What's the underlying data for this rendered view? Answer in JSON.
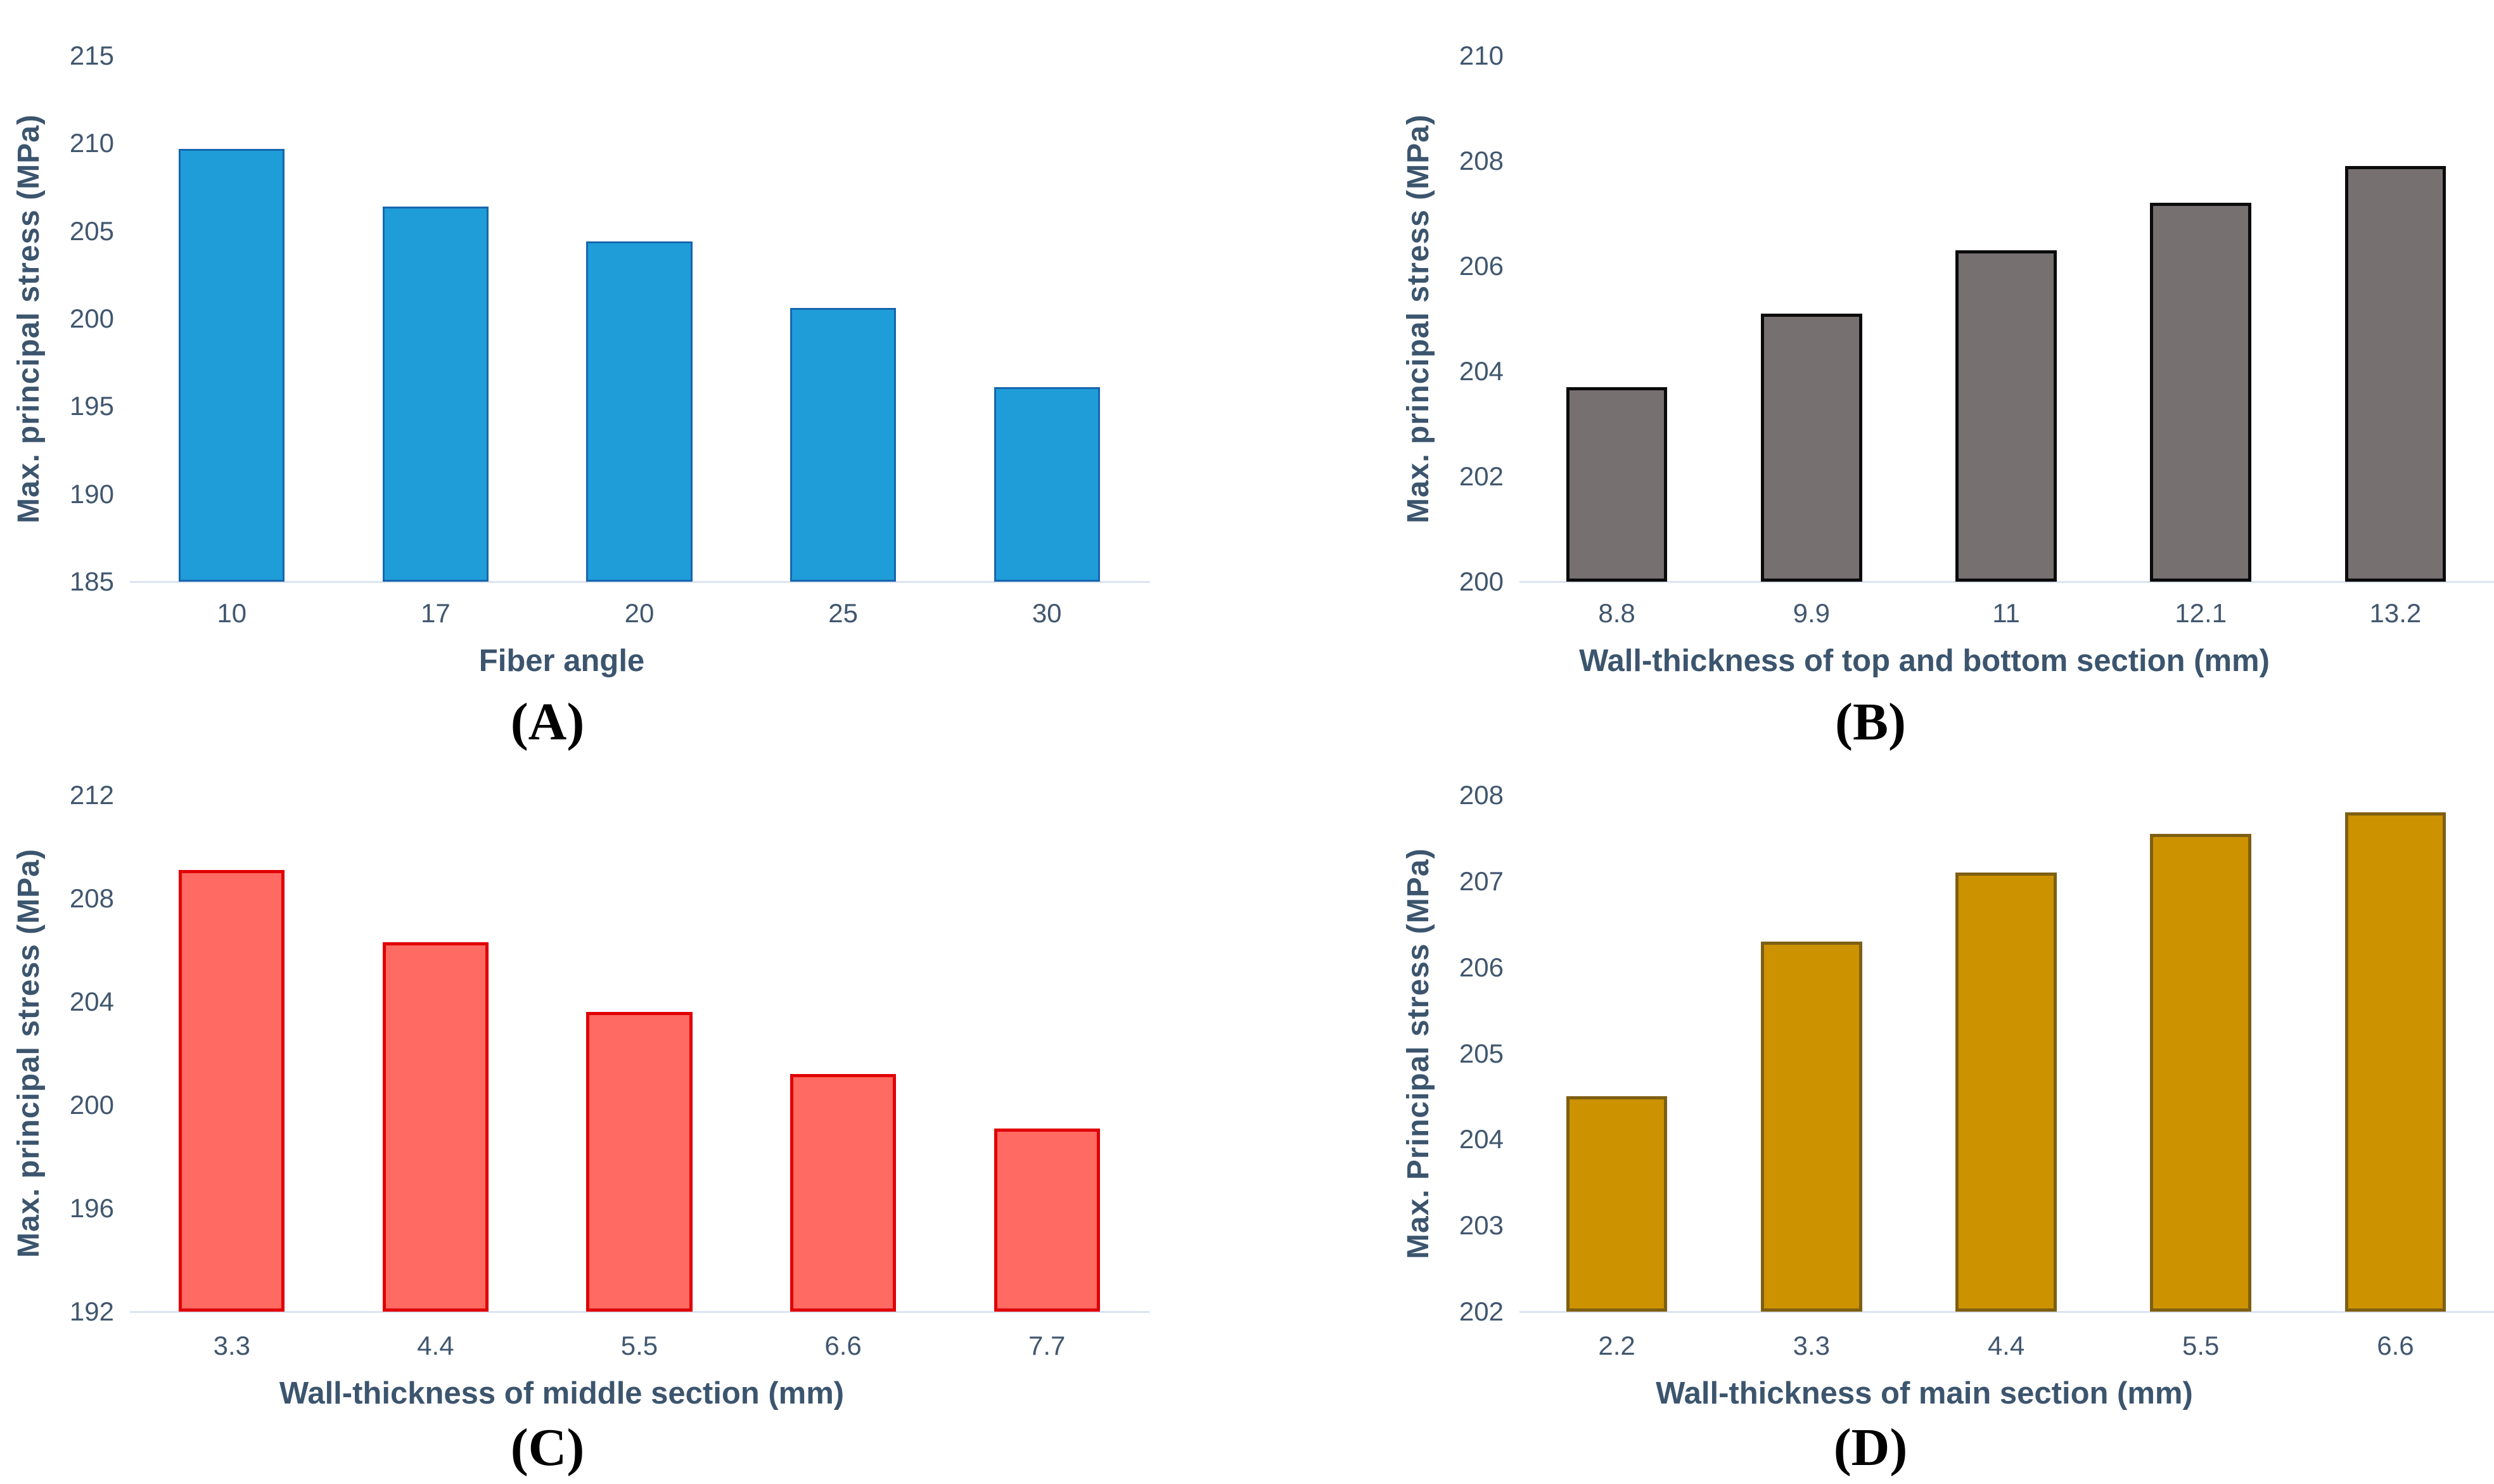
{
  "figure_name": "four-panel bar chart figure, max principal stress parametric study",
  "colors": {
    "tick_label": "#41576F",
    "axis_title": "#3C556E",
    "panel_letter": "#000000",
    "baseline": "#DCE4F0",
    "background": "#FFFFFF"
  },
  "chart_data": [
    {
      "type": "bar",
      "panel_label": "(A)",
      "title": "",
      "xlabel": "Fiber angle",
      "ylabel": "Max. principal stress (MPa)",
      "categories": [
        "10",
        "17",
        "20",
        "25",
        "30"
      ],
      "values": [
        209.7,
        206.4,
        204.4,
        200.6,
        196.1
      ],
      "ylim": [
        185,
        215
      ],
      "yticks": [
        185,
        190,
        195,
        200,
        205,
        210,
        215
      ],
      "grid": false,
      "legend": "none",
      "bar_fill": "#1F9DD9",
      "bar_border": "#1766AE",
      "bar_border_px": 3
    },
    {
      "type": "bar",
      "panel_label": "(B)",
      "title": "",
      "xlabel": "Wall-thickness of top and bottom section (mm)",
      "ylabel": "Max. principal stress (MPa)",
      "categories": [
        "8.8",
        "9.9",
        "11",
        "12.1",
        "13.2"
      ],
      "values": [
        203.7,
        205.1,
        206.3,
        207.2,
        207.9
      ],
      "ylim": [
        200,
        210
      ],
      "yticks": [
        200,
        202,
        204,
        206,
        208,
        210
      ],
      "grid": false,
      "legend": "none",
      "bar_fill": "#767071",
      "bar_border": "#0B0B0B",
      "bar_border_px": 5
    },
    {
      "type": "bar",
      "panel_label": "(C)",
      "title": "",
      "xlabel": "Wall-thickness of middle section (mm)",
      "ylabel": "Max. principal stress (MPa)",
      "categories": [
        "3.3",
        "4.4",
        "5.5",
        "6.6",
        "7.7"
      ],
      "values": [
        209.1,
        206.3,
        203.6,
        201.2,
        199.1
      ],
      "ylim": [
        192,
        212
      ],
      "yticks": [
        192,
        196,
        200,
        204,
        208,
        212
      ],
      "grid": false,
      "legend": "none",
      "bar_fill": "#FF6A62",
      "bar_border": "#E00005",
      "bar_border_px": 5
    },
    {
      "type": "bar",
      "panel_label": "(D)",
      "title": "",
      "xlabel": "Wall-thickness of main section (mm)",
      "ylabel": "Max. Principal stress (MPa)",
      "categories": [
        "2.2",
        "3.3",
        "4.4",
        "5.5",
        "6.6"
      ],
      "values": [
        204.5,
        206.3,
        207.1,
        207.55,
        207.8
      ],
      "ylim": [
        202,
        208
      ],
      "yticks": [
        202,
        203,
        204,
        205,
        206,
        207,
        208
      ],
      "grid": false,
      "legend": "none",
      "bar_fill": "#CD9200",
      "bar_border": "#7E5F13",
      "bar_border_px": 5
    }
  ]
}
